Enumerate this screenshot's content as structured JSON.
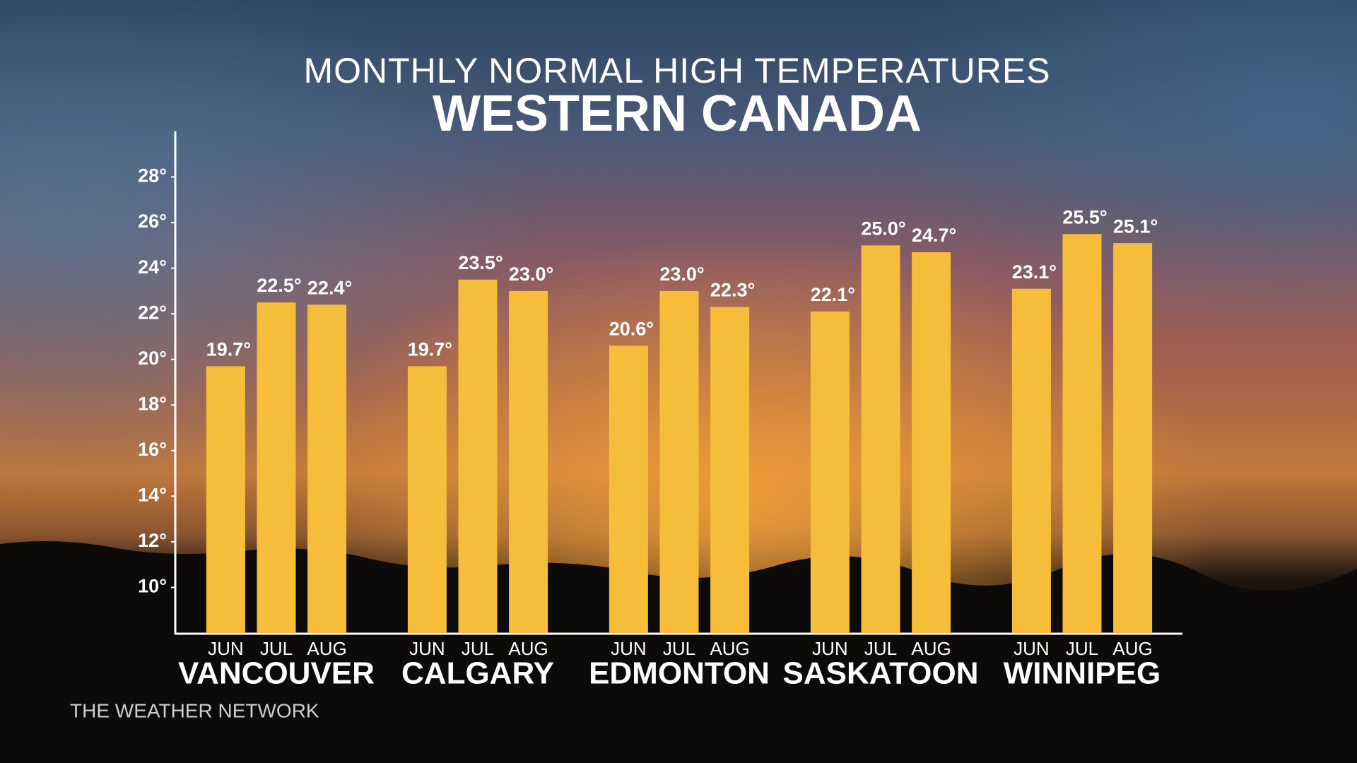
{
  "chart_data": {
    "type": "bar",
    "title": "MONTHLY NORMAL HIGH TEMPERATURES",
    "subtitle": "WESTERN CANADA",
    "categories": [
      "VANCOUVER",
      "CALGARY",
      "EDMONTON",
      "SASKATOON",
      "WINNIPEG"
    ],
    "series": [
      {
        "name": "JUN",
        "color": "#f5bd3a",
        "values": [
          19.7,
          19.7,
          20.6,
          22.1,
          23.1
        ],
        "value_labels": [
          "19.7°",
          "19.7°",
          "20.6°",
          "22.1°",
          "23.1°"
        ]
      },
      {
        "name": "JUL",
        "color": "#f5bd3a",
        "values": [
          22.5,
          23.5,
          23.0,
          25.0,
          25.5
        ],
        "value_labels": [
          "22.5°",
          "23.5°",
          "23.0°",
          "25.0°",
          "25.5°"
        ]
      },
      {
        "name": "AUG",
        "color": "#f5bd3a",
        "values": [
          22.4,
          23.0,
          22.3,
          24.7,
          25.1
        ],
        "value_labels": [
          "22.4°",
          "23.0°",
          "22.3°",
          "24.7°",
          "25.1°"
        ]
      }
    ],
    "ylim": [
      8,
      30
    ],
    "yticks": [
      {
        "value": 10,
        "label": "10°"
      },
      {
        "value": 12,
        "label": "12°"
      },
      {
        "value": 14,
        "label": "14°"
      },
      {
        "value": 16,
        "label": "16°"
      },
      {
        "value": 18,
        "label": "18°"
      },
      {
        "value": 20,
        "label": "20°"
      },
      {
        "value": 22,
        "label": "22°"
      },
      {
        "value": 24,
        "label": "24°"
      },
      {
        "value": 26,
        "label": "26°"
      },
      {
        "value": 28,
        "label": "28°"
      }
    ],
    "grid": false,
    "footer": "THE WEATHER NETWORK"
  }
}
